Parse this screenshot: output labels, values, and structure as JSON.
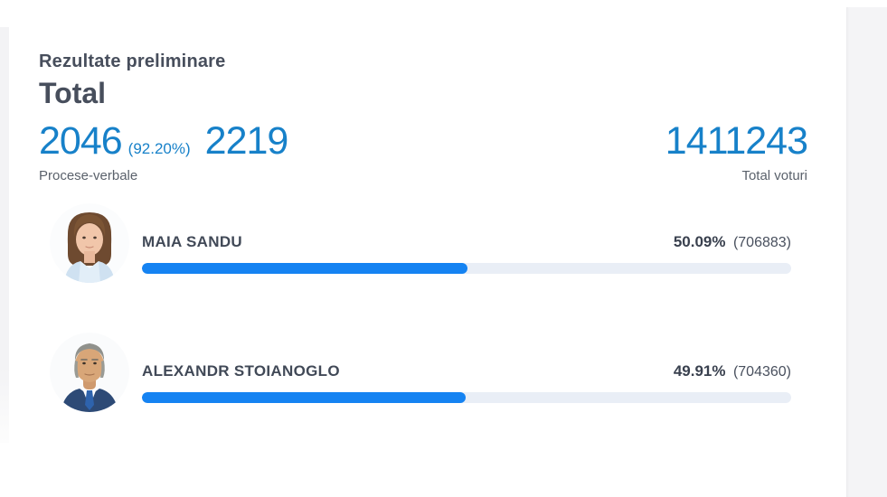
{
  "header": {
    "pretitle": "Rezultate preliminare",
    "title": "Total"
  },
  "stats": {
    "processed_count": "2046",
    "processed_percent": "(92.20%)",
    "total_count": "2219",
    "processed_label": "Procese-verbale",
    "total_votes": "1411243",
    "total_votes_label": "Total voturi"
  },
  "candidates": [
    {
      "name": "MAIA SANDU",
      "percent": "50.09%",
      "votes": "(706883)",
      "bar_percent": 50.09
    },
    {
      "name": "ALEXANDR STOIANOGLO",
      "percent": "49.91%",
      "votes": "(704360)",
      "bar_percent": 49.91
    }
  ],
  "colors": {
    "stat_blue": "#1781c9",
    "bar_fill": "#1583f2",
    "bar_track": "#e9eef6",
    "text_dark": "#474e5c",
    "text_gray": "#5a616b",
    "page_bg": "#f4f4f6"
  }
}
